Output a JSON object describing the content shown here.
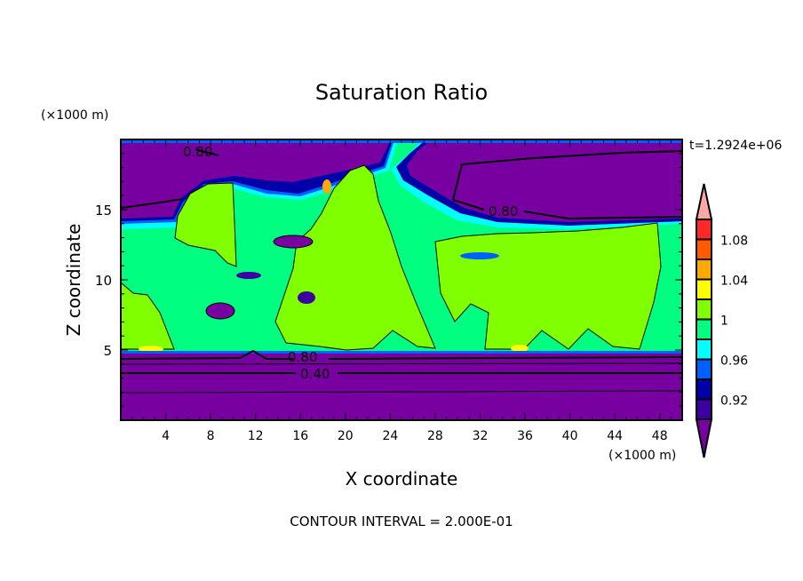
{
  "chart_data": {
    "type": "heatmap",
    "subtype": "filled-contour",
    "title": "Saturation Ratio",
    "xlabel": "X coordinate",
    "ylabel": "Z coordinate",
    "x_units": "(×1000 m)",
    "y_units": "(×1000 m)",
    "xlim": [
      0,
      50
    ],
    "ylim": [
      0,
      20
    ],
    "xticks": [
      4,
      8,
      12,
      16,
      20,
      24,
      28,
      32,
      36,
      40,
      44,
      48
    ],
    "yticks": [
      5,
      10,
      15
    ],
    "time_label": "t=1.2924e+06",
    "footer": "CONTOUR INTERVAL = 2.000E-01",
    "contour_labels": [
      "0.80",
      "0.80",
      "0.80",
      "0.40"
    ],
    "colorbar": {
      "levels": [
        0.9,
        0.92,
        0.94,
        0.96,
        0.98,
        1.0,
        1.02,
        1.04,
        1.06,
        1.08,
        1.1
      ],
      "tick_labels": [
        "0.92",
        "0.96",
        "1",
        "1.04",
        "1.08"
      ],
      "tick_values": [
        0.92,
        0.96,
        1.0,
        1.04,
        1.08
      ],
      "colors": [
        "#3c00a0",
        "#0000a8",
        "#0060ff",
        "#00ffff",
        "#00ff80",
        "#80ff00",
        "#ffff00",
        "#ffa800",
        "#ff5a00",
        "#ff2828"
      ],
      "under_color": "#7800a0",
      "over_color": "#ffa8a8"
    }
  }
}
